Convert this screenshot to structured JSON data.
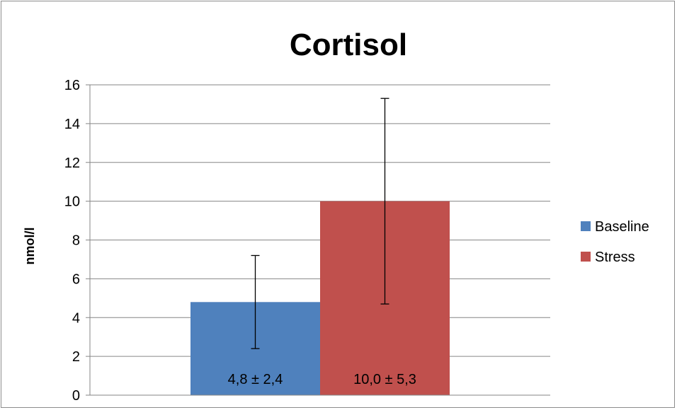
{
  "chart_data": {
    "type": "bar",
    "title": "Cortisol",
    "xlabel": "",
    "ylabel": "nmol/l",
    "ylim": [
      0,
      16
    ],
    "yticks": [
      0,
      2,
      4,
      6,
      8,
      10,
      12,
      14,
      16
    ],
    "grid": "horizontal",
    "legend_position": "right",
    "series": [
      {
        "name": "Baseline",
        "values": [
          4.8
        ],
        "error": [
          2.4
        ],
        "data_label": "4,8 ± 2,4",
        "color": "#4f81bd"
      },
      {
        "name": "Stress",
        "values": [
          10.0
        ],
        "error": [
          5.3
        ],
        "data_label": "10,0 ± 5,3",
        "color": "#c0504d"
      }
    ]
  }
}
